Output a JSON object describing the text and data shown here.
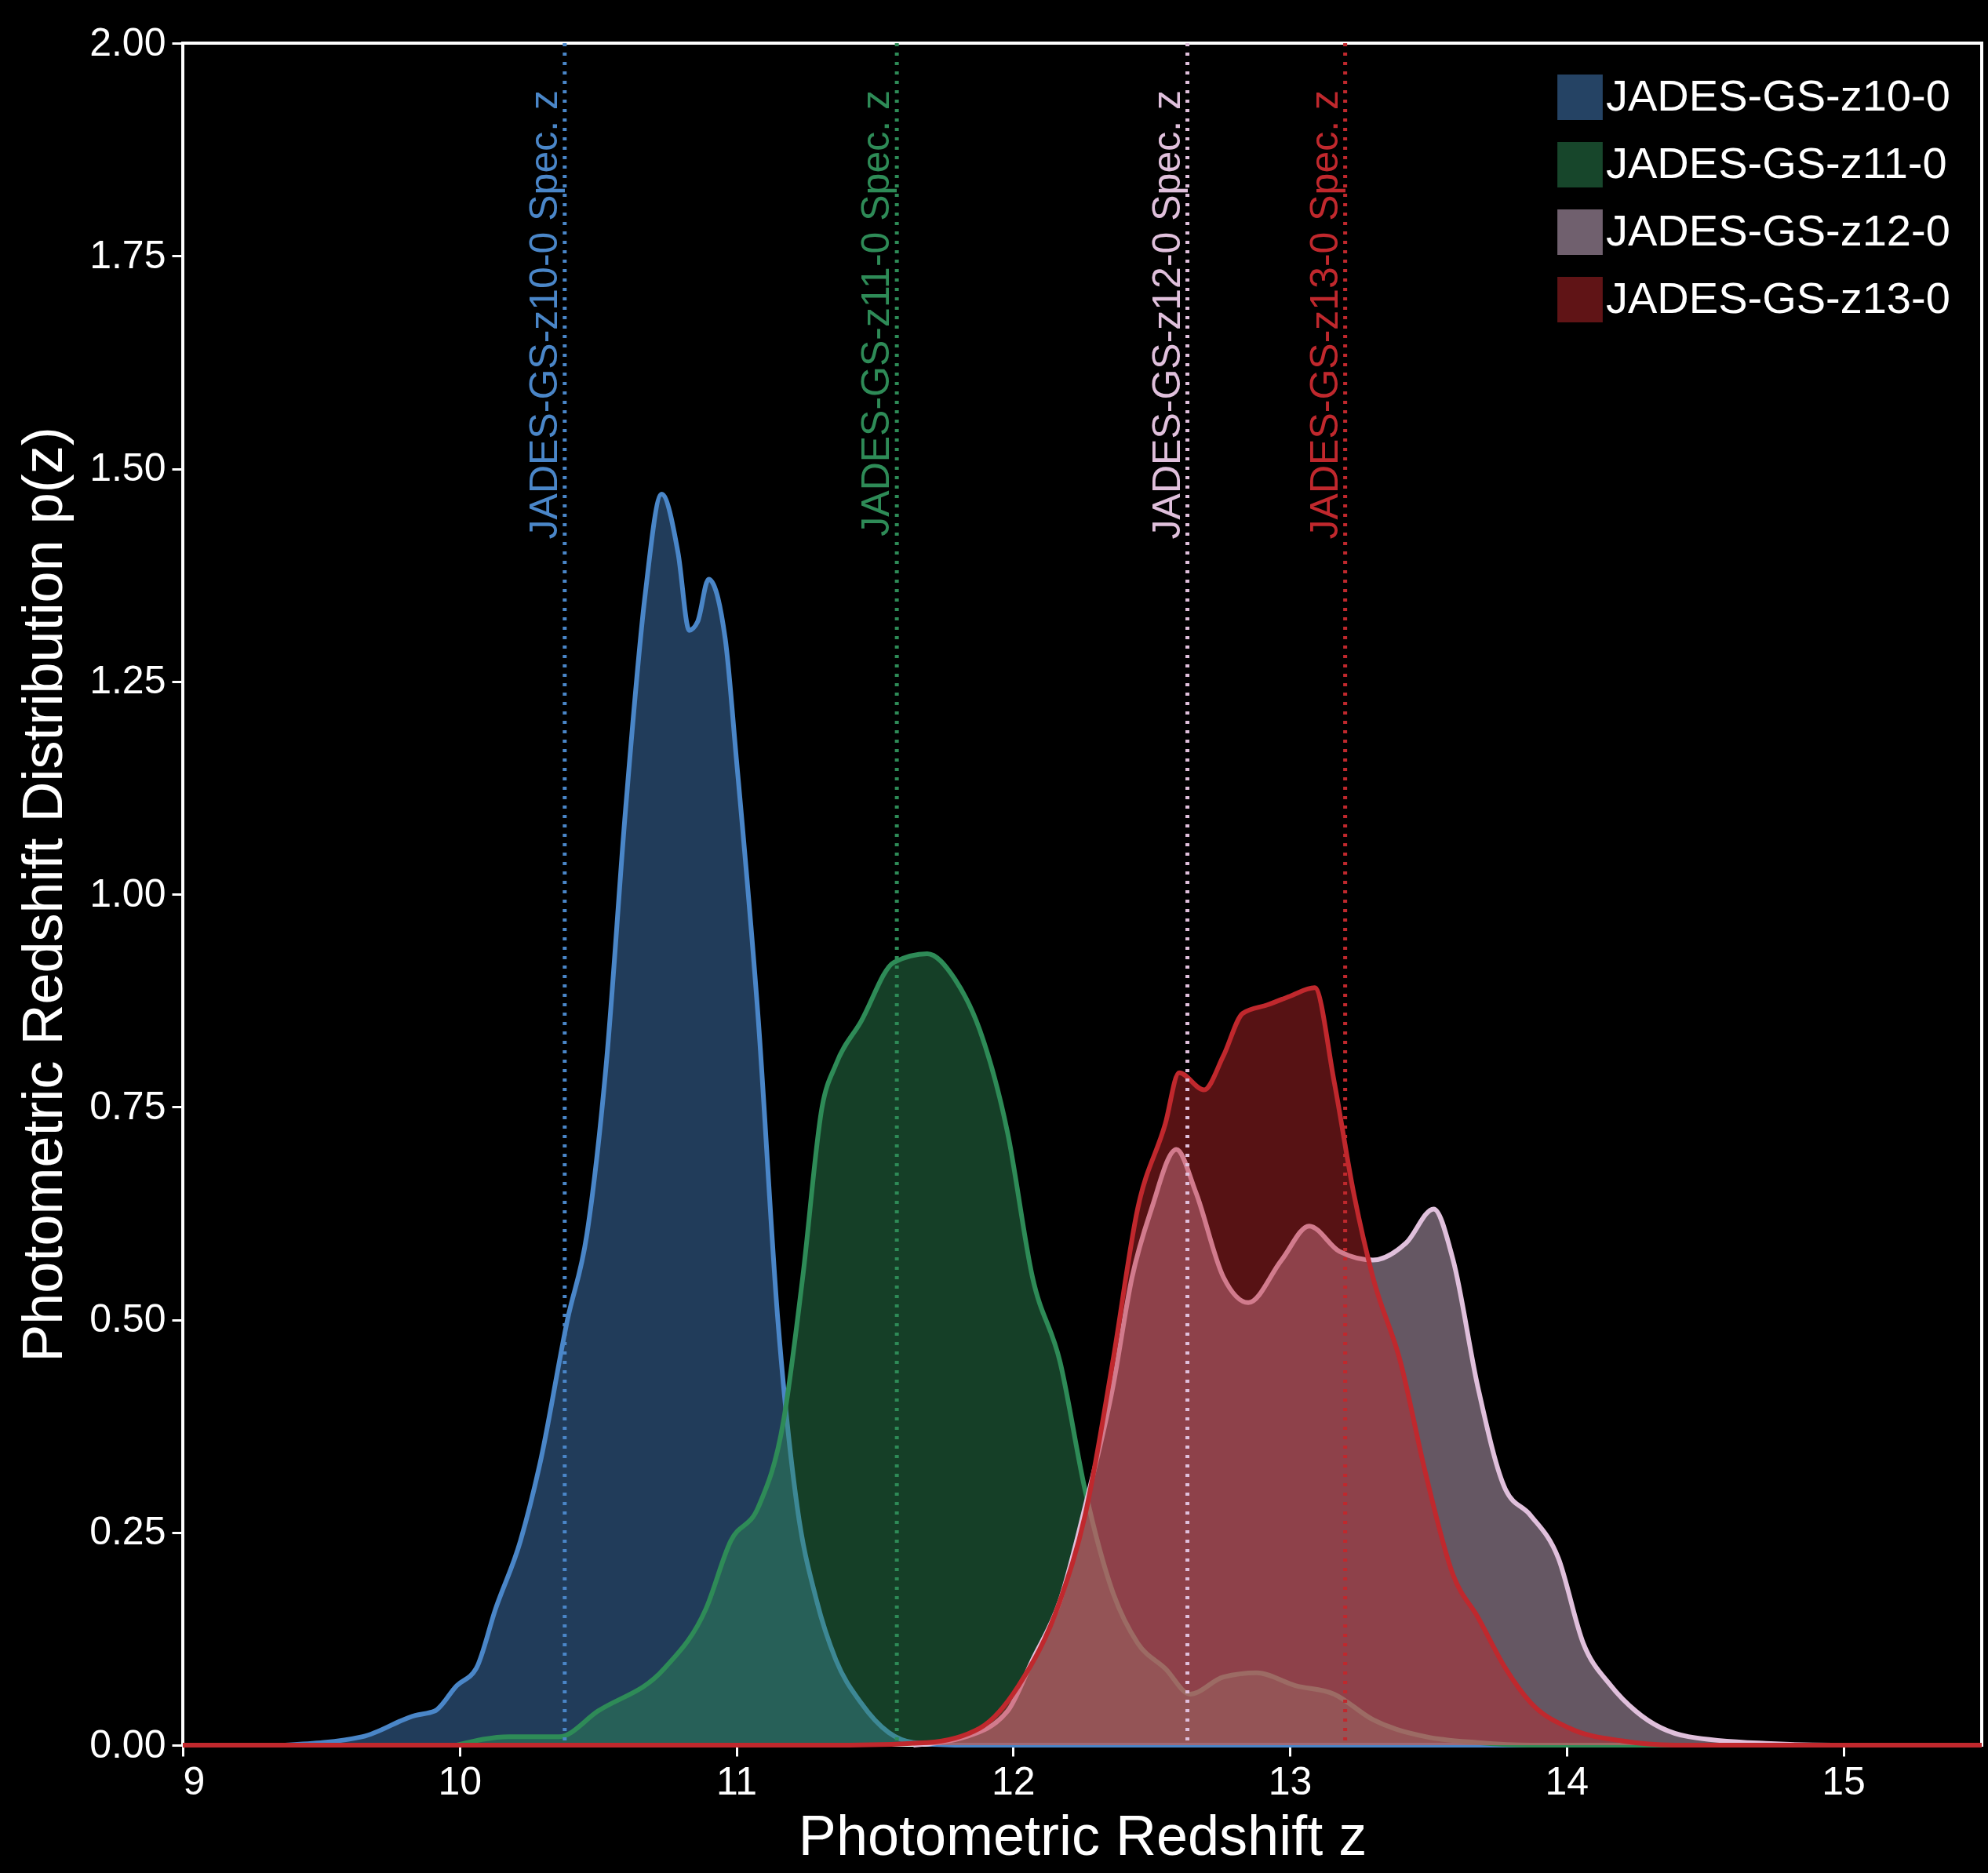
{
  "chart_data": {
    "type": "area",
    "xlabel": "Photometric Redshift z",
    "ylabel": "Photometric Redshift Distribution p(z)",
    "xlim": [
      9,
      15.5
    ],
    "xticks": [
      9,
      10,
      11,
      12,
      13,
      14,
      15
    ],
    "ylim": [
      0,
      2
    ],
    "yticks": [
      {
        "value": 0,
        "label": "0.00"
      },
      {
        "value": 0.25,
        "label": "0.25"
      },
      {
        "value": 0.5,
        "label": "0.50"
      },
      {
        "value": 0.75,
        "label": "0.75"
      },
      {
        "value": 1,
        "label": "1.00"
      },
      {
        "value": 1.25,
        "label": "1.25"
      },
      {
        "value": 1.5,
        "label": "1.50"
      },
      {
        "value": 1.75,
        "label": "1.75"
      },
      {
        "value": 2,
        "label": "2.00"
      }
    ],
    "grid": false,
    "legend": "top right",
    "series": [
      {
        "name": "JADES-GS-z10-0",
        "color": "#4a86c8",
        "x": [
          9.37,
          9.65,
          9.84,
          9.91,
          9.99,
          10.06,
          10.13,
          10.22,
          10.29,
          10.39,
          10.46,
          10.53,
          10.6,
          10.67,
          10.73,
          10.79,
          10.83,
          10.86,
          10.9,
          10.96,
          11.0,
          11.08,
          11.15,
          11.22,
          11.29,
          11.36,
          11.45,
          11.55,
          11.64,
          11.79,
          15.5
        ],
        "values": [
          0,
          0.01,
          0.035,
          0.04,
          0.07,
          0.09,
          0.16,
          0.24,
          0.33,
          0.5,
          0.6,
          0.8,
          1.1,
          1.35,
          1.47,
          1.4,
          1.31,
          1.32,
          1.37,
          1.3,
          1.16,
          0.85,
          0.5,
          0.28,
          0.17,
          0.1,
          0.05,
          0.015,
          0.003,
          0,
          0
        ]
      },
      {
        "name": "JADES-GS-z11-0",
        "color": "#2e8b57",
        "x": [
          9.99,
          10.18,
          10.36,
          10.5,
          10.74,
          10.89,
          10.98,
          11.08,
          11.17,
          11.24,
          11.31,
          11.36,
          11.45,
          11.57,
          11.69,
          11.79,
          11.88,
          11.98,
          12.07,
          12.17,
          12.26,
          12.36,
          12.45,
          12.55,
          12.64,
          12.76,
          12.88,
          13.02,
          13.16,
          13.3,
          13.49,
          13.68,
          13.87,
          15.5
        ],
        "values": [
          0,
          0.01,
          0.01,
          0.04,
          0.09,
          0.16,
          0.24,
          0.28,
          0.38,
          0.55,
          0.75,
          0.8,
          0.85,
          0.92,
          0.93,
          0.9,
          0.84,
          0.72,
          0.55,
          0.45,
          0.3,
          0.18,
          0.12,
          0.09,
          0.06,
          0.08,
          0.085,
          0.07,
          0.06,
          0.03,
          0.01,
          0.003,
          0,
          0
        ]
      },
      {
        "name": "JADES-GS-z12-0",
        "color": "#e0c0dc",
        "x": [
          11.64,
          11.83,
          11.98,
          12.07,
          12.17,
          12.26,
          12.36,
          12.43,
          12.5,
          12.59,
          12.66,
          12.76,
          12.85,
          12.97,
          13.07,
          13.18,
          13.3,
          13.42,
          13.52,
          13.59,
          13.68,
          13.78,
          13.87,
          13.97,
          14.06,
          14.16,
          14.25,
          14.44,
          14.72,
          14.96,
          15.5
        ],
        "values": [
          0,
          0.01,
          0.04,
          0.1,
          0.17,
          0.28,
          0.42,
          0.55,
          0.63,
          0.7,
          0.65,
          0.55,
          0.52,
          0.57,
          0.61,
          0.58,
          0.57,
          0.59,
          0.63,
          0.57,
          0.42,
          0.3,
          0.27,
          0.22,
          0.12,
          0.07,
          0.04,
          0.01,
          0.002,
          0,
          0
        ]
      },
      {
        "name": "JADES-GS-z13-0",
        "color": "#c0282d",
        "x": [
          9.0,
          11.41,
          11.69,
          11.88,
          12.02,
          12.17,
          12.26,
          12.36,
          12.45,
          12.55,
          12.6,
          12.69,
          12.76,
          12.83,
          12.92,
          13.0,
          13.09,
          13.16,
          13.23,
          13.3,
          13.4,
          13.49,
          13.59,
          13.68,
          13.78,
          13.87,
          14.01,
          14.2,
          14.39,
          15.5
        ],
        "values": [
          0,
          0,
          0.003,
          0.02,
          0.07,
          0.17,
          0.27,
          0.45,
          0.63,
          0.73,
          0.79,
          0.77,
          0.81,
          0.86,
          0.87,
          0.88,
          0.89,
          0.78,
          0.65,
          0.55,
          0.45,
          0.32,
          0.2,
          0.15,
          0.09,
          0.05,
          0.02,
          0.005,
          0,
          0
        ]
      }
    ],
    "ref_lines": [
      {
        "axis": "x",
        "value": 10.38,
        "label": "JADES-GS-z10-0 Spec. z",
        "color": "#4a86c8",
        "line_style": "dotted"
      },
      {
        "axis": "x",
        "value": 11.58,
        "label": "JADES-GS-z11-0 Spec. z",
        "color": "#2e8b57",
        "line_style": "dotted"
      },
      {
        "axis": "x",
        "value": 12.63,
        "label": "JADES-GS-z12-0 Spec. z",
        "color": "#e0c0dc",
        "line_style": "dotted"
      },
      {
        "axis": "x",
        "value": 13.2,
        "label": "JADES-GS-z13-0 Spec. z",
        "color": "#c0282d",
        "line_style": "dotted"
      }
    ]
  }
}
